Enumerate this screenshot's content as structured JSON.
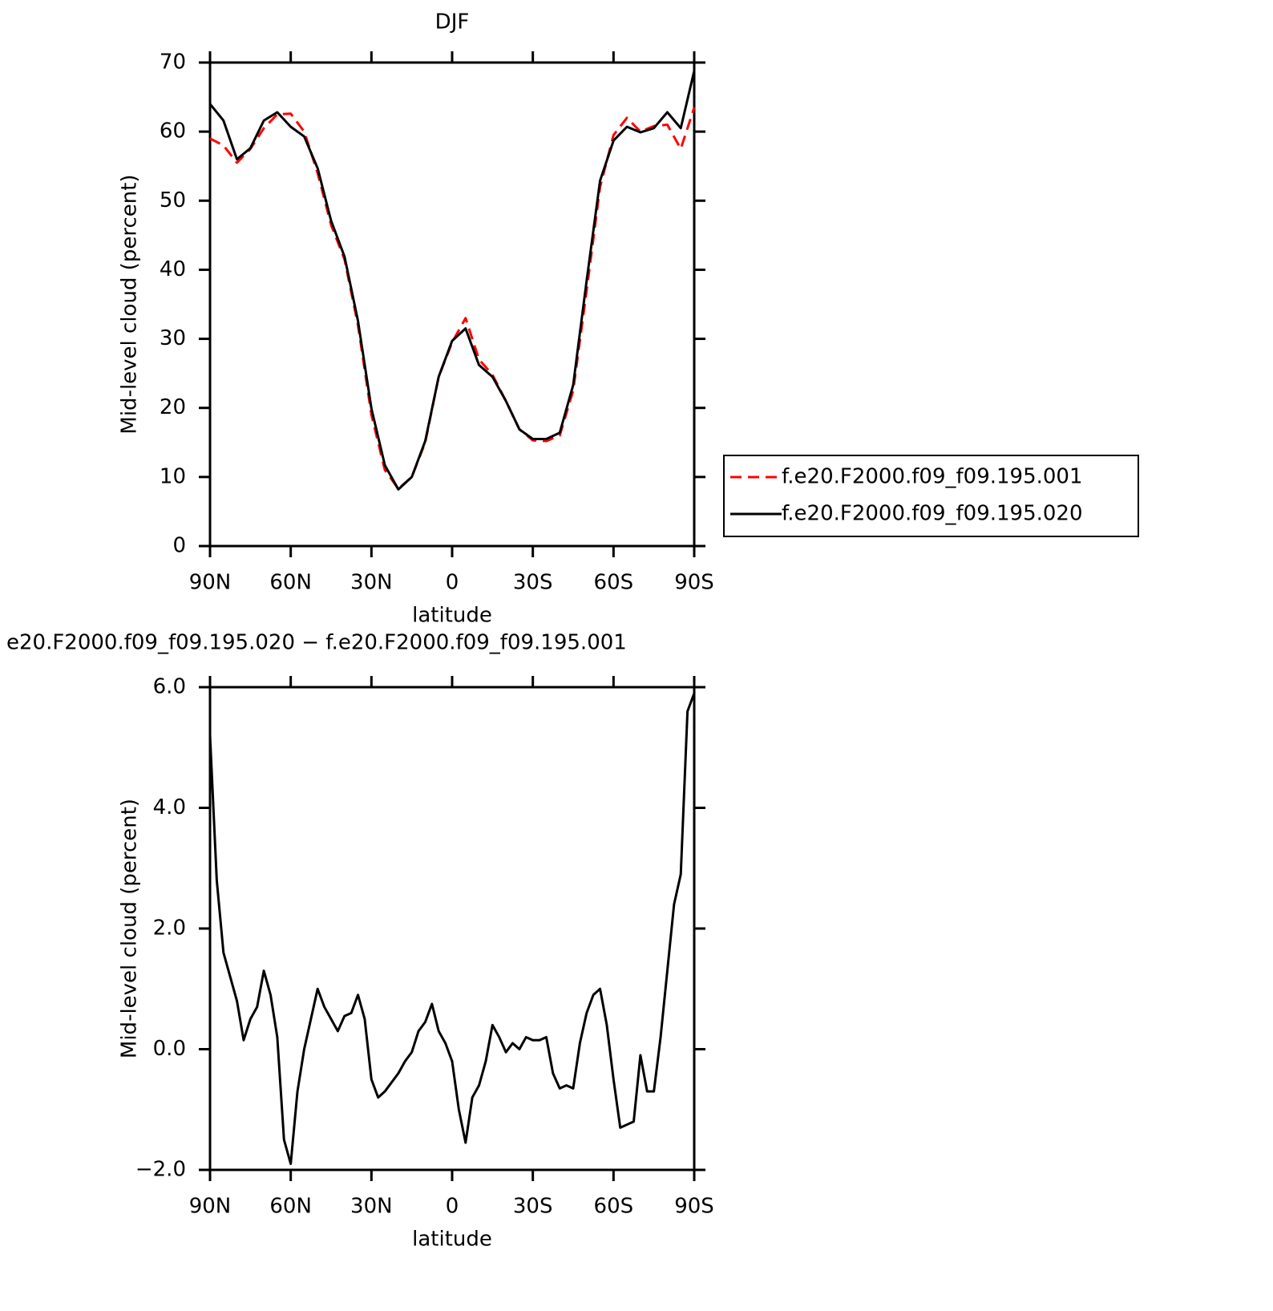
{
  "chart_data": [
    {
      "type": "line",
      "title": "DJF",
      "xlabel": "latitude",
      "ylabel": "Mid-level cloud (percent)",
      "xlim": [
        90,
        -90
      ],
      "xticks": [
        {
          "value": 90,
          "label": "90N"
        },
        {
          "value": 60,
          "label": "60N"
        },
        {
          "value": 30,
          "label": "30N"
        },
        0,
        {
          "value": -30,
          "label": "30S"
        },
        {
          "value": -60,
          "label": "60S"
        },
        {
          "value": -90,
          "label": "90S"
        }
      ],
      "ylim": [
        0,
        70
      ],
      "yticks": [
        0,
        10,
        20,
        30,
        40,
        50,
        60,
        70
      ],
      "legend": "right",
      "x": [
        90,
        85,
        80,
        75,
        70,
        65,
        60,
        55,
        50,
        45,
        40,
        35,
        30,
        25,
        20,
        15,
        10,
        5,
        0,
        -5,
        -10,
        -15,
        -20,
        -25,
        -30,
        -35,
        -40,
        -45,
        -50,
        -55,
        -60,
        -65,
        -70,
        -75,
        -80,
        -85,
        -90
      ],
      "series": [
        {
          "name": "f.e20.F2000.f09_f09.195.001",
          "color": "#ff0000",
          "linestyle": "dashed",
          "values": [
            59,
            58,
            55.5,
            57.5,
            60.5,
            62.5,
            62.6,
            60,
            54,
            46.5,
            41.5,
            32,
            19,
            11,
            8.3,
            10,
            15,
            24.5,
            29.5,
            33,
            27,
            24.8,
            21,
            16.9,
            15.3,
            15.2,
            16,
            22.5,
            37,
            52,
            59.5,
            62,
            60,
            60.8,
            61,
            57.5,
            63.5
          ]
        },
        {
          "name": "f.e20.F2000.f09_f09.195.020",
          "color": "#000000",
          "linestyle": "solid",
          "values": [
            64,
            61.6,
            56,
            57.6,
            61.6,
            62.8,
            60.7,
            59.3,
            54.7,
            47.1,
            41.9,
            32.6,
            19.9,
            11.7,
            8.2,
            10,
            15.2,
            24.5,
            29.7,
            31.5,
            26.2,
            24.5,
            21,
            16.9,
            15.5,
            15.5,
            16.4,
            23.3,
            38.4,
            52.9,
            58.7,
            60.7,
            59.9,
            60.5,
            62.8,
            60.5,
            68.8
          ]
        }
      ]
    },
    {
      "type": "line",
      "title": "e20.F2000.f09_f09.195.020 − f.e20.F2000.f09_f09.195.001",
      "xlabel": "latitude",
      "ylabel": "Mid-level cloud (percent)",
      "xlim": [
        90,
        -90
      ],
      "xticks": [
        {
          "value": 90,
          "label": "90N"
        },
        {
          "value": 60,
          "label": "60N"
        },
        {
          "value": 30,
          "label": "30N"
        },
        0,
        {
          "value": -30,
          "label": "30S"
        },
        {
          "value": -60,
          "label": "60S"
        },
        {
          "value": -90,
          "label": "90S"
        }
      ],
      "ylim": [
        -2,
        6
      ],
      "yticks": [
        {
          "value": -2,
          "label": "−2.0"
        },
        {
          "value": 0,
          "label": "0.0"
        },
        {
          "value": 2,
          "label": "2.0"
        },
        {
          "value": 4,
          "label": "4.0"
        },
        {
          "value": 6,
          "label": "6.0"
        }
      ],
      "x": [
        90,
        87.5,
        85,
        82.5,
        80,
        77.5,
        75,
        72.5,
        70,
        67.5,
        65,
        62.5,
        60,
        57.5,
        55,
        52.5,
        50,
        47.5,
        45,
        42.5,
        40,
        37.5,
        35,
        32.5,
        30,
        27.5,
        25,
        22.5,
        20,
        17.5,
        15,
        12.5,
        10,
        7.5,
        5,
        2.5,
        0,
        -2.5,
        -5,
        -7.5,
        -10,
        -12.5,
        -15,
        -17.5,
        -20,
        -22.5,
        -25,
        -27.5,
        -30,
        -32.5,
        -35,
        -37.5,
        -40,
        -42.5,
        -45,
        -47.5,
        -50,
        -52.5,
        -55,
        -57.5,
        -60,
        -62.5,
        -65,
        -67.5,
        -70,
        -72.5,
        -75,
        -77.5,
        -80,
        -82.5,
        -85,
        -87.5,
        -90
      ],
      "color": "#000000",
      "values": [
        5.2,
        2.8,
        1.6,
        1.2,
        0.8,
        0.15,
        0.5,
        0.7,
        1.3,
        0.9,
        0.2,
        -1.5,
        -1.9,
        -0.7,
        0,
        0.5,
        1,
        0.7,
        0.5,
        0.3,
        0.55,
        0.6,
        0.9,
        0.5,
        -0.5,
        -0.8,
        -0.7,
        -0.55,
        -0.4,
        -0.2,
        -0.05,
        0.3,
        0.45,
        0.75,
        0.3,
        0.1,
        -0.2,
        -1,
        -1.55,
        -0.8,
        -0.6,
        -0.2,
        0.4,
        0.2,
        -0.05,
        0.1,
        0,
        0.2,
        0.15,
        0.15,
        0.2,
        -0.4,
        -0.65,
        -0.6,
        -0.65,
        0.1,
        0.6,
        0.9,
        1,
        0.4,
        -0.5,
        -1.3,
        -1.25,
        -1.2,
        -0.1,
        -0.7,
        -0.7,
        0.2,
        1.3,
        2.4,
        2.9,
        5.6,
        5.9
      ]
    }
  ]
}
